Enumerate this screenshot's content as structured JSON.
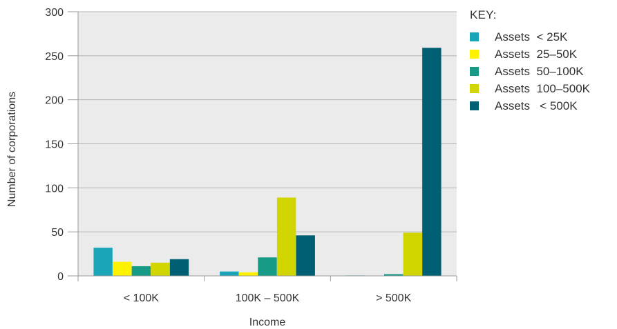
{
  "chart_data": {
    "type": "bar",
    "xlabel": "Income",
    "ylabel": "Number of corporations",
    "ylim": [
      0,
      300
    ],
    "yticks": [
      0,
      50,
      100,
      150,
      200,
      250,
      300
    ],
    "grid": "horizontal",
    "legend_placement": "right",
    "categories": [
      "< 100K",
      "100K – 500K",
      "> 500K"
    ],
    "series": [
      {
        "name": "Assets  < 25K",
        "color": "#1aa5b8",
        "values": [
          32,
          5,
          0.5
        ]
      },
      {
        "name": "Assets  25–50K",
        "color": "#fff200",
        "values": [
          16,
          4,
          0
        ]
      },
      {
        "name": "Assets  50–100K",
        "color": "#179a86",
        "values": [
          11,
          21,
          2
        ]
      },
      {
        "name": "Assets  100–500K",
        "color": "#d2d600",
        "values": [
          15,
          89,
          49
        ]
      },
      {
        "name": "Assets   < 500K",
        "color": "#005f73",
        "values": [
          19,
          46,
          259
        ]
      }
    ]
  },
  "legend": {
    "title": "KEY:"
  }
}
